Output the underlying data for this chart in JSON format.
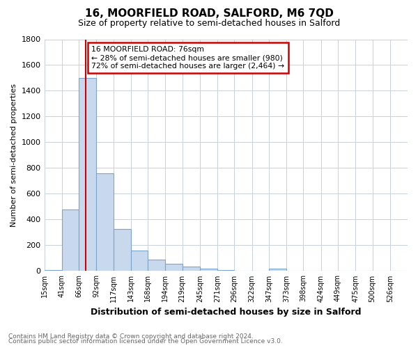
{
  "title": "16, MOORFIELD ROAD, SALFORD, M6 7QD",
  "subtitle": "Size of property relative to semi-detached houses in Salford",
  "xlabel": "Distribution of semi-detached houses by size in Salford",
  "ylabel": "Number of semi-detached properties",
  "footnote1": "Contains HM Land Registry data © Crown copyright and database right 2024.",
  "footnote2": "Contains public sector information licensed under the Open Government Licence v3.0.",
  "annotation_line1": "16 MOORFIELD ROAD: 76sqm",
  "annotation_line2": "← 28% of semi-detached houses are smaller (980)",
  "annotation_line3": "72% of semi-detached houses are larger (2,464) →",
  "bar_color": "#c8d9ee",
  "bar_edge_color": "#7ba3cb",
  "vline_color": "#cc0000",
  "vline_x": 76,
  "categories": [
    "15sqm",
    "41sqm",
    "66sqm",
    "92sqm",
    "117sqm",
    "143sqm",
    "168sqm",
    "194sqm",
    "219sqm",
    "245sqm",
    "271sqm",
    "296sqm",
    "322sqm",
    "347sqm",
    "373sqm",
    "398sqm",
    "424sqm",
    "449sqm",
    "475sqm",
    "500sqm",
    "526sqm"
  ],
  "bin_edges": [
    15,
    41,
    66,
    92,
    117,
    143,
    168,
    194,
    219,
    245,
    271,
    296,
    322,
    347,
    373,
    398,
    424,
    449,
    475,
    500,
    526,
    552
  ],
  "values": [
    10,
    480,
    1500,
    760,
    325,
    160,
    90,
    55,
    35,
    20,
    10,
    0,
    0,
    20,
    0,
    0,
    0,
    0,
    0,
    0,
    0
  ],
  "ylim": [
    0,
    1800
  ],
  "yticks": [
    0,
    200,
    400,
    600,
    800,
    1000,
    1200,
    1400,
    1600,
    1800
  ],
  "background_color": "#ffffff",
  "grid_color": "#c8d0dc",
  "title_fontsize": 11,
  "subtitle_fontsize": 9
}
